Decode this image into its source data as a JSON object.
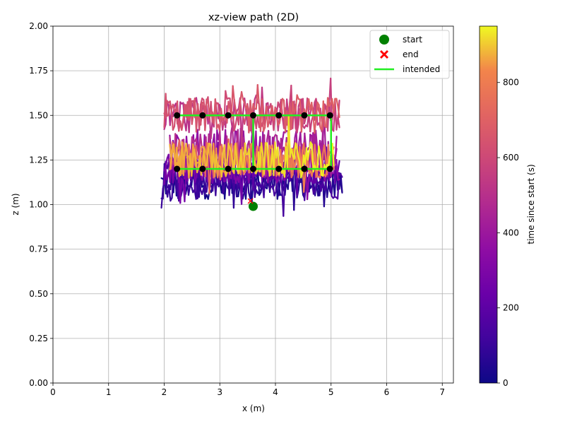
{
  "chart_data": {
    "type": "line",
    "title": "xz-view path (2D)",
    "xlabel": "x (m)",
    "ylabel": "z (m)",
    "xlim": [
      0,
      7.2
    ],
    "ylim": [
      0,
      2.0
    ],
    "xticks": [
      "0",
      "1",
      "2",
      "3",
      "4",
      "5",
      "6",
      "7"
    ],
    "yticks": [
      "0.00",
      "0.25",
      "0.50",
      "0.75",
      "1.00",
      "1.25",
      "1.50",
      "1.75",
      "2.00"
    ],
    "grid": true,
    "legend": {
      "placement": "top-right",
      "entries": [
        {
          "label": "start",
          "marker": "circle",
          "color": "#008000"
        },
        {
          "label": "end",
          "marker": "x",
          "color": "#ff0000"
        },
        {
          "label": "intended",
          "marker": "line",
          "color": "#22ee22"
        }
      ]
    },
    "start": {
      "x": 3.6,
      "z": 0.99
    },
    "end": {
      "x": 3.55,
      "z": 1.02
    },
    "intended_path": [
      {
        "x": 2.23,
        "z": 1.5
      },
      {
        "x": 5.0,
        "z": 1.5
      },
      {
        "x": 5.0,
        "z": 1.2
      },
      {
        "x": 2.23,
        "z": 1.2
      },
      {
        "x": 3.6,
        "z": 1.2
      },
      {
        "x": 3.6,
        "z": 1.5
      }
    ],
    "waypoints": [
      {
        "x": 2.23,
        "z": 1.5
      },
      {
        "x": 2.69,
        "z": 1.5
      },
      {
        "x": 3.15,
        "z": 1.5
      },
      {
        "x": 3.6,
        "z": 1.5
      },
      {
        "x": 4.06,
        "z": 1.5
      },
      {
        "x": 4.52,
        "z": 1.5
      },
      {
        "x": 4.98,
        "z": 1.5
      },
      {
        "x": 2.23,
        "z": 1.2
      },
      {
        "x": 2.69,
        "z": 1.2
      },
      {
        "x": 3.15,
        "z": 1.2
      },
      {
        "x": 3.6,
        "z": 1.2
      },
      {
        "x": 4.06,
        "z": 1.2
      },
      {
        "x": 4.52,
        "z": 1.2
      },
      {
        "x": 4.98,
        "z": 1.2
      }
    ],
    "trajectory_bands": [
      {
        "t_start": 0,
        "t_end": 150,
        "z_center": 1.12,
        "z_jitter": 0.09,
        "x_min": 1.95,
        "x_max": 5.2,
        "passes": 3
      },
      {
        "t_start": 150,
        "t_end": 350,
        "z_center": 1.2,
        "z_jitter": 0.08,
        "x_min": 2.0,
        "x_max": 5.15,
        "passes": 3
      },
      {
        "t_start": 350,
        "t_end": 500,
        "z_center": 1.3,
        "z_jitter": 0.12,
        "x_min": 2.1,
        "x_max": 5.1,
        "passes": 2
      },
      {
        "t_start": 500,
        "t_end": 700,
        "z_center": 1.5,
        "z_jitter": 0.1,
        "x_min": 2.0,
        "x_max": 5.15,
        "passes": 3
      },
      {
        "t_start": 700,
        "t_end": 950,
        "z_center": 1.25,
        "z_jitter": 0.1,
        "x_min": 2.1,
        "x_max": 5.05,
        "passes": 3
      }
    ],
    "colorbar": {
      "label": "time since start (s)",
      "min": 0,
      "max": 950,
      "ticks": [
        "0",
        "200",
        "400",
        "600",
        "800"
      ],
      "colormap": "plasma"
    }
  }
}
